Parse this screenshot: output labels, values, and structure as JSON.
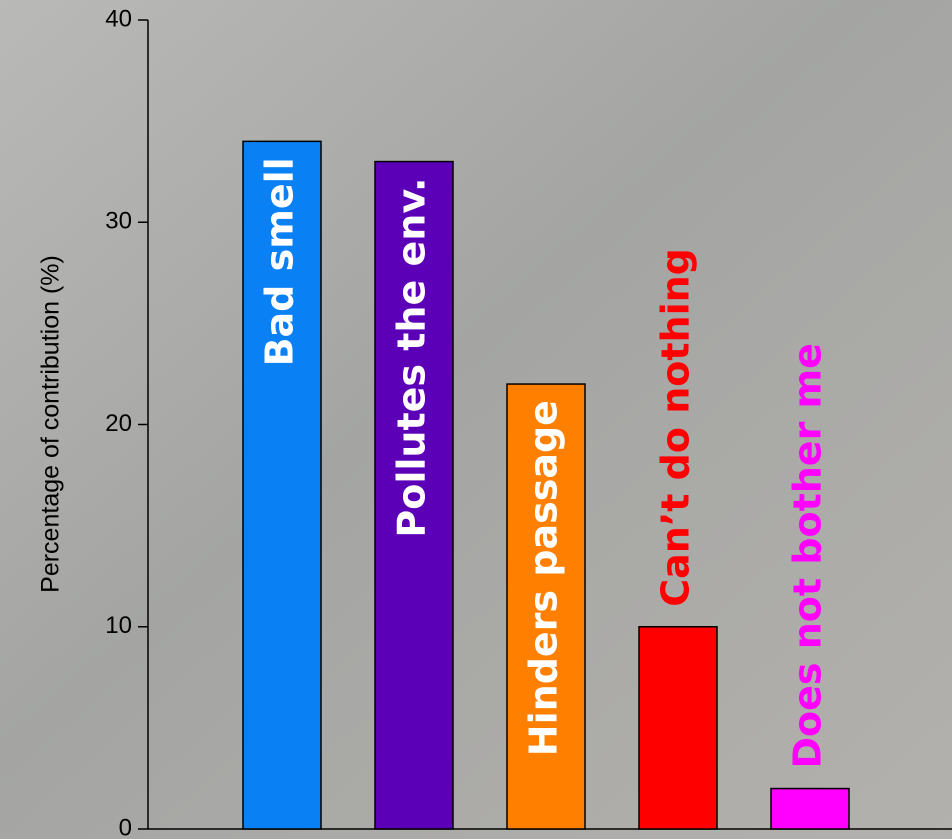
{
  "chart_data": {
    "type": "bar",
    "y_label": "Percentage of contribution (%)",
    "categories": [
      "Bad smell",
      "Pollutes the env.",
      "Hinders passage",
      "Can’t do nothing",
      "Does not bother me"
    ],
    "values": [
      34,
      33,
      22,
      10,
      2
    ],
    "colors": [
      "#0a80f5",
      "#5c00b8",
      "#ff8000",
      "#ff0000",
      "#ff00ff"
    ],
    "ylim": [
      0,
      40
    ],
    "yticks": [
      0,
      10,
      20,
      30,
      40
    ]
  }
}
